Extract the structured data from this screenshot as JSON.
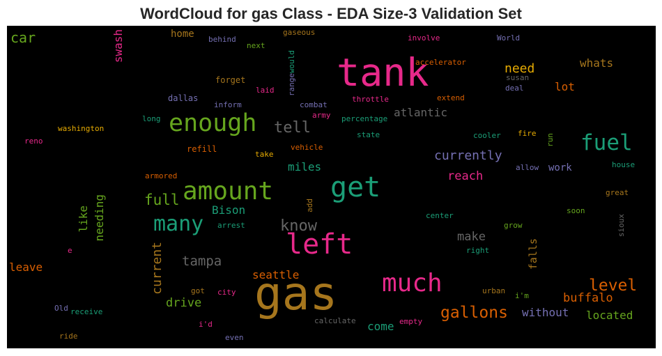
{
  "title": "WordCloud for gas Class - EDA Size-3 Validation Set",
  "palette": {
    "background": "#000000",
    "teal": "#1b9e77",
    "orange": "#d95f02",
    "purple": "#7570b3",
    "pink": "#e7298a",
    "green": "#66a61e",
    "gold": "#e6ab02",
    "brown": "#a6761d",
    "gray": "#666666"
  },
  "words": [
    {
      "text": "gas",
      "color": "#a6761d"
    },
    {
      "text": "tank",
      "color": "#e7298a"
    },
    {
      "text": "left",
      "color": "#e7298a"
    },
    {
      "text": "amount",
      "color": "#66a61e"
    },
    {
      "text": "get",
      "color": "#1b9e77"
    },
    {
      "text": "much",
      "color": "#e7298a"
    },
    {
      "text": "enough",
      "color": "#66a61e"
    },
    {
      "text": "fuel",
      "color": "#1b9e77"
    },
    {
      "text": "many",
      "color": "#1b9e77"
    },
    {
      "text": "level",
      "color": "#d95f02"
    },
    {
      "text": "gallons",
      "color": "#d95f02"
    },
    {
      "text": "tell",
      "color": "#666666"
    },
    {
      "text": "know",
      "color": "#666666"
    },
    {
      "text": "full",
      "color": "#66a61e"
    },
    {
      "text": "currently",
      "color": "#7570b3"
    },
    {
      "text": "tampa",
      "color": "#666666"
    },
    {
      "text": "need",
      "color": "#e6ab02"
    },
    {
      "text": "car",
      "color": "#66a61e"
    },
    {
      "text": "buffalo",
      "color": "#d95f02"
    },
    {
      "text": "current",
      "color": "#a6761d"
    },
    {
      "text": "atlantic",
      "color": "#666666"
    },
    {
      "text": "reach",
      "color": "#e7298a"
    },
    {
      "text": "make",
      "color": "#666666"
    },
    {
      "text": "seattle",
      "color": "#d95f02"
    },
    {
      "text": "drive",
      "color": "#66a61e"
    },
    {
      "text": "miles",
      "color": "#1b9e77"
    },
    {
      "text": "Bison",
      "color": "#1b9e77"
    },
    {
      "text": "like",
      "color": "#66a61e"
    },
    {
      "text": "needing",
      "color": "#66a61e"
    },
    {
      "text": "without",
      "color": "#7570b3"
    },
    {
      "text": "located",
      "color": "#66a61e"
    },
    {
      "text": "falls",
      "color": "#a6761d"
    },
    {
      "text": "leave",
      "color": "#d95f02"
    },
    {
      "text": "come",
      "color": "#1b9e77"
    },
    {
      "text": "whats",
      "color": "#a6761d"
    },
    {
      "text": "lot",
      "color": "#d95f02"
    },
    {
      "text": "work",
      "color": "#7570b3"
    },
    {
      "text": "swash",
      "color": "#e7298a"
    },
    {
      "text": "home",
      "color": "#a6761d"
    },
    {
      "text": "behind",
      "color": "#7570b3"
    },
    {
      "text": "next",
      "color": "#66a61e"
    },
    {
      "text": "gaseous",
      "color": "#a6761d"
    },
    {
      "text": "involve",
      "color": "#e7298a"
    },
    {
      "text": "World",
      "color": "#7570b3"
    },
    {
      "text": "would",
      "color": "#1b9e77"
    },
    {
      "text": "range",
      "color": "#7570b3"
    },
    {
      "text": "accelerator",
      "color": "#d95f02"
    },
    {
      "text": "susan",
      "color": "#666666"
    },
    {
      "text": "deal",
      "color": "#7570b3"
    },
    {
      "text": "forget",
      "color": "#a6761d"
    },
    {
      "text": "laid",
      "color": "#e7298a"
    },
    {
      "text": "combat",
      "color": "#7570b3"
    },
    {
      "text": "throttle",
      "color": "#e7298a"
    },
    {
      "text": "extend",
      "color": "#d95f02"
    },
    {
      "text": "dallas",
      "color": "#7570b3"
    },
    {
      "text": "inform",
      "color": "#7570b3"
    },
    {
      "text": "army",
      "color": "#e7298a"
    },
    {
      "text": "percentage",
      "color": "#1b9e77"
    },
    {
      "text": "long",
      "color": "#1b9e77"
    },
    {
      "text": "washington",
      "color": "#e6ab02"
    },
    {
      "text": "cooler",
      "color": "#1b9e77"
    },
    {
      "text": "fire",
      "color": "#e6ab02"
    },
    {
      "text": "run",
      "color": "#66a61e"
    },
    {
      "text": "reno",
      "color": "#e7298a"
    },
    {
      "text": "state",
      "color": "#1b9e77"
    },
    {
      "text": "refill",
      "color": "#d95f02"
    },
    {
      "text": "take",
      "color": "#e6ab02"
    },
    {
      "text": "vehicle",
      "color": "#d95f02"
    },
    {
      "text": "house",
      "color": "#1b9e77"
    },
    {
      "text": "allow",
      "color": "#7570b3"
    },
    {
      "text": "armored",
      "color": "#d95f02"
    },
    {
      "text": "great",
      "color": "#a6761d"
    },
    {
      "text": "add",
      "color": "#a6761d"
    },
    {
      "text": "soon",
      "color": "#66a61e"
    },
    {
      "text": "center",
      "color": "#1b9e77"
    },
    {
      "text": "arrest",
      "color": "#1b9e77"
    },
    {
      "text": "sioux",
      "color": "#666666"
    },
    {
      "text": "grow",
      "color": "#66a61e"
    },
    {
      "text": "right",
      "color": "#1b9e77"
    },
    {
      "text": "e",
      "color": "#e7298a"
    },
    {
      "text": "got",
      "color": "#a6761d"
    },
    {
      "text": "city",
      "color": "#e7298a"
    },
    {
      "text": "urban",
      "color": "#a6761d"
    },
    {
      "text": "i'm",
      "color": "#66a61e"
    },
    {
      "text": "Old",
      "color": "#7570b3"
    },
    {
      "text": "receive",
      "color": "#1b9e77"
    },
    {
      "text": "i'd",
      "color": "#e7298a"
    },
    {
      "text": "calculate",
      "color": "#666666"
    },
    {
      "text": "empty",
      "color": "#e7298a"
    },
    {
      "text": "ride",
      "color": "#a6761d"
    },
    {
      "text": "even",
      "color": "#7570b3"
    }
  ]
}
